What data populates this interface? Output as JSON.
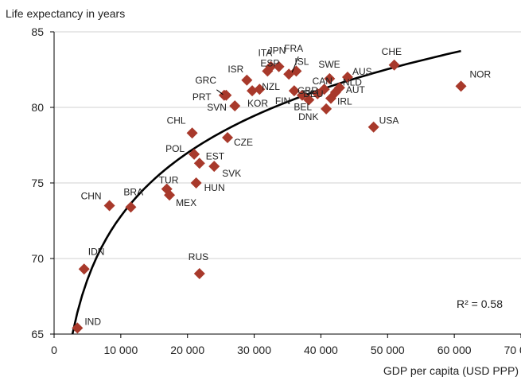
{
  "chart_data": {
    "type": "scatter",
    "ylabel": "Life expectancy in years",
    "xlabel": "GDP per capita (USD PPP)",
    "xlim": [
      0,
      70000
    ],
    "ylim": [
      65,
      85
    ],
    "xticks": [
      0,
      10000,
      20000,
      30000,
      40000,
      50000,
      60000,
      70000
    ],
    "xtick_labels": [
      "0",
      "10 000",
      "20 000",
      "30 000",
      "40 000",
      "50 000",
      "60 000",
      "70 000"
    ],
    "yticks": [
      65,
      70,
      75,
      80,
      85
    ],
    "ytick_labels": [
      "65",
      "70",
      "75",
      "80",
      "85"
    ],
    "grid": "horizontal",
    "marker_color": "#a8392b",
    "trend_color": "#000000",
    "trendline": "logarithmic",
    "annotation": "R² = 0.58",
    "points": [
      {
        "label": "IND",
        "x": 3500,
        "y": 65.4
      },
      {
        "label": "IDN",
        "x": 4500,
        "y": 69.3
      },
      {
        "label": "CHN",
        "x": 8300,
        "y": 73.5
      },
      {
        "label": "BRA",
        "x": 11500,
        "y": 73.4
      },
      {
        "label": "TUR",
        "x": 16900,
        "y": 74.6
      },
      {
        "label": "MEX",
        "x": 17300,
        "y": 74.2
      },
      {
        "label": "RUS",
        "x": 21800,
        "y": 69.0
      },
      {
        "label": "HUN",
        "x": 21300,
        "y": 75.0
      },
      {
        "label": "POL",
        "x": 21000,
        "y": 76.9
      },
      {
        "label": "EST",
        "x": 21800,
        "y": 76.3
      },
      {
        "label": "SVK",
        "x": 24000,
        "y": 76.1
      },
      {
        "label": "CHL",
        "x": 20700,
        "y": 78.3
      },
      {
        "label": "CZE",
        "x": 26000,
        "y": 78.0
      },
      {
        "label": "SVN",
        "x": 27100,
        "y": 80.1
      },
      {
        "label": "PRT",
        "x": 25500,
        "y": 80.8
      },
      {
        "label": "GRC",
        "x": 25800,
        "y": 80.8
      },
      {
        "label": "ISR",
        "x": 28900,
        "y": 81.8
      },
      {
        "label": "KOR",
        "x": 29700,
        "y": 81.1
      },
      {
        "label": "NZL",
        "x": 30800,
        "y": 81.2
      },
      {
        "label": "ESP",
        "x": 32000,
        "y": 82.4
      },
      {
        "label": "ITA",
        "x": 32500,
        "y": 82.7
      },
      {
        "label": "JPN",
        "x": 33700,
        "y": 82.7
      },
      {
        "label": "FIN",
        "x": 36000,
        "y": 81.1
      },
      {
        "label": "FRA",
        "x": 35200,
        "y": 82.2
      },
      {
        "label": "ISL",
        "x": 36300,
        "y": 82.4
      },
      {
        "label": "GBR",
        "x": 37200,
        "y": 80.8
      },
      {
        "label": "BEL",
        "x": 38200,
        "y": 80.5
      },
      {
        "label": "DEU",
        "x": 39500,
        "y": 80.9
      },
      {
        "label": "CAN",
        "x": 40500,
        "y": 81.2
      },
      {
        "label": "DNK",
        "x": 40800,
        "y": 79.9
      },
      {
        "label": "SWE",
        "x": 41300,
        "y": 81.9
      },
      {
        "label": "IRL",
        "x": 41500,
        "y": 80.6
      },
      {
        "label": "AUT",
        "x": 42200,
        "y": 81.0
      },
      {
        "label": "NLD",
        "x": 42800,
        "y": 81.3
      },
      {
        "label": "AUS",
        "x": 44000,
        "y": 82.0
      },
      {
        "label": "USA",
        "x": 47900,
        "y": 78.7
      },
      {
        "label": "CHE",
        "x": 51000,
        "y": 82.8
      },
      {
        "label": "NOR",
        "x": 61000,
        "y": 81.4
      }
    ]
  }
}
